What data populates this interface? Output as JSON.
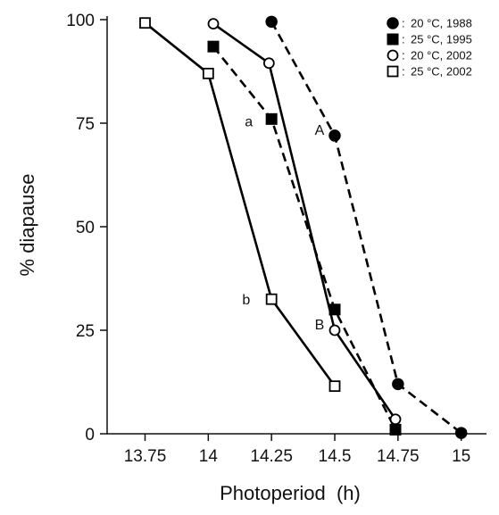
{
  "chart_data": {
    "type": "line",
    "title": "",
    "xlabel": "Photoperiod  (h)",
    "ylabel": "% diapause",
    "xlim": [
      13.6,
      15.1
    ],
    "ylim": [
      0,
      100
    ],
    "x_ticks": [
      13.75,
      14,
      14.25,
      14.5,
      14.75,
      15
    ],
    "x_tick_labels": [
      "13.75",
      "14",
      "14.25",
      "14.5",
      "14.75",
      "15"
    ],
    "y_ticks": [
      0,
      25,
      50,
      75,
      100
    ],
    "y_tick_labels": [
      "0",
      "25",
      "50",
      "75",
      "100"
    ],
    "grid": false,
    "legend_position": "top-right",
    "series": [
      {
        "name": "20 °C, 1988",
        "marker": "filled-circle",
        "line": "dashed",
        "points": [
          [
            14.25,
            99.5
          ],
          [
            14.5,
            72
          ],
          [
            14.75,
            12
          ],
          [
            15,
            0.2
          ]
        ]
      },
      {
        "name": "25 °C, 1995",
        "marker": "filled-square",
        "line": "dashed",
        "points": [
          [
            14.02,
            93.5
          ],
          [
            14.25,
            76
          ],
          [
            14.5,
            30
          ],
          [
            14.74,
            1
          ]
        ]
      },
      {
        "name": "20 °C, 2002",
        "marker": "open-circle",
        "line": "solid",
        "points": [
          [
            14.02,
            99
          ],
          [
            14.24,
            89.5
          ],
          [
            14.5,
            25
          ],
          [
            14.74,
            3.5
          ]
        ]
      },
      {
        "name": "25 °C, 2002",
        "marker": "open-square",
        "line": "solid",
        "points": [
          [
            13.75,
            99.2
          ],
          [
            14,
            87
          ],
          [
            14.25,
            32.5
          ],
          [
            14.5,
            11.5
          ]
        ]
      }
    ],
    "annotations": [
      {
        "text": "A",
        "x": 14.44,
        "y": 73.5
      },
      {
        "text": "a",
        "x": 14.16,
        "y": 75.5
      },
      {
        "text": "B",
        "x": 14.44,
        "y": 26.5
      },
      {
        "text": "b",
        "x": 14.15,
        "y": 32.5
      }
    ],
    "legend_separator": ":"
  }
}
